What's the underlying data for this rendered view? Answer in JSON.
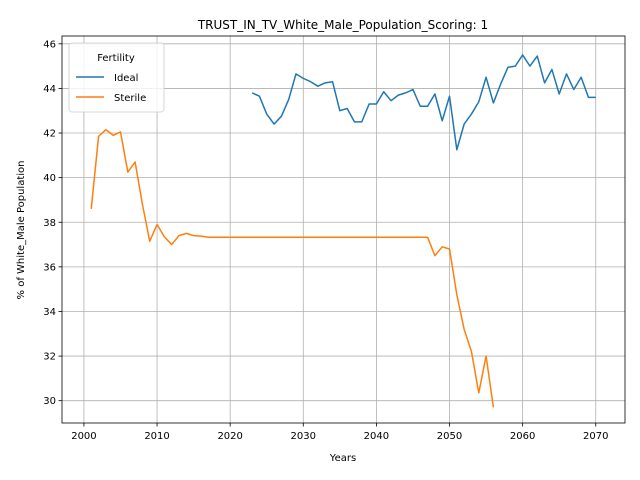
{
  "chart_data": {
    "type": "line",
    "title": "TRUST_IN_TV_White_Male_Population_Scoring: 1",
    "xlabel": "Years",
    "ylabel": "% of White_Male Population",
    "xlim": [
      1997,
      2074
    ],
    "ylim": [
      29.0,
      46.35
    ],
    "xticks": [
      2000,
      2010,
      2020,
      2030,
      2040,
      2050,
      2060,
      2070
    ],
    "yticks": [
      30,
      32,
      34,
      36,
      38,
      40,
      42,
      44,
      46
    ],
    "grid": true,
    "legend": {
      "title": "Fertility",
      "placement": "top-left"
    },
    "series": [
      {
        "name": "Ideal",
        "color": "#1f77b4",
        "x": [
          2023,
          2024,
          2025,
          2026,
          2027,
          2028,
          2029,
          2030,
          2031,
          2032,
          2033,
          2034,
          2035,
          2036,
          2037,
          2038,
          2039,
          2040,
          2041,
          2042,
          2043,
          2044,
          2045,
          2046,
          2047,
          2048,
          2049,
          2050,
          2051,
          2052,
          2053,
          2054,
          2055,
          2056,
          2057,
          2058,
          2059,
          2060,
          2061,
          2062,
          2063,
          2064,
          2065,
          2066,
          2067,
          2068,
          2069,
          2070
        ],
        "y": [
          43.8,
          43.65,
          42.85,
          42.4,
          42.75,
          43.5,
          44.65,
          44.45,
          44.3,
          44.1,
          44.25,
          44.3,
          43.0,
          43.1,
          42.5,
          42.5,
          43.3,
          43.3,
          43.85,
          43.45,
          43.7,
          43.8,
          43.95,
          43.2,
          43.2,
          43.75,
          42.55,
          43.65,
          41.25,
          42.4,
          42.85,
          43.4,
          44.5,
          43.35,
          44.2,
          44.95,
          45.0,
          45.5,
          45.0,
          45.45,
          44.25,
          44.85,
          43.75,
          44.65,
          43.95,
          44.5,
          43.6,
          43.6
        ]
      },
      {
        "name": "Sterile",
        "color": "#ff7f0e",
        "x": [
          2001,
          2002,
          2003,
          2004,
          2005,
          2006,
          2007,
          2008,
          2009,
          2010,
          2011,
          2012,
          2013,
          2014,
          2015,
          2016,
          2017,
          2018,
          2019,
          2020,
          2021,
          2022,
          2023,
          2024,
          2025,
          2026,
          2027,
          2028,
          2029,
          2030,
          2031,
          2032,
          2033,
          2034,
          2035,
          2036,
          2037,
          2038,
          2039,
          2040,
          2041,
          2042,
          2043,
          2044,
          2045,
          2046,
          2047,
          2048,
          2049,
          2050,
          2051,
          2052,
          2053,
          2054,
          2055,
          2056
        ],
        "y": [
          38.6,
          41.85,
          42.15,
          41.9,
          42.05,
          40.25,
          40.7,
          38.8,
          37.15,
          37.9,
          37.35,
          37.0,
          37.4,
          37.5,
          37.4,
          37.38,
          37.33,
          37.33,
          37.33,
          37.33,
          37.33,
          37.33,
          37.33,
          37.33,
          37.33,
          37.33,
          37.33,
          37.33,
          37.33,
          37.33,
          37.33,
          37.33,
          37.33,
          37.33,
          37.33,
          37.33,
          37.33,
          37.33,
          37.33,
          37.33,
          37.33,
          37.33,
          37.33,
          37.33,
          37.33,
          37.33,
          37.33,
          36.5,
          36.9,
          36.8,
          34.75,
          33.2,
          32.2,
          30.35,
          32.0,
          29.7
        ]
      }
    ]
  }
}
